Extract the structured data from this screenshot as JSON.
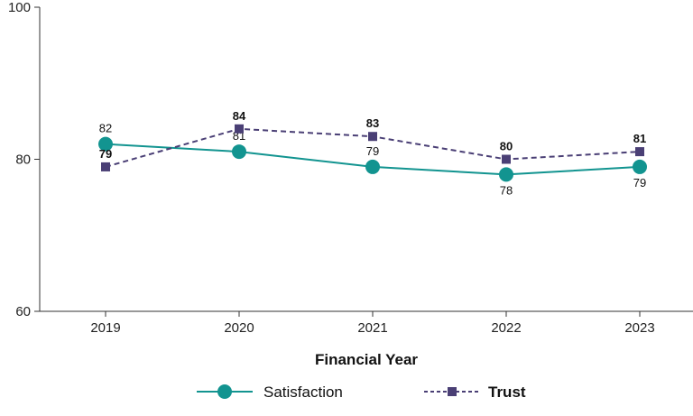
{
  "chart_data": {
    "type": "line",
    "title": "",
    "xlabel": "Financial Year",
    "ylabel": "",
    "categories": [
      "2019",
      "2020",
      "2021",
      "2022",
      "2023"
    ],
    "ylim": [
      60,
      100
    ],
    "yticks": [
      60,
      80,
      100
    ],
    "grid": false,
    "legend_position": "bottom",
    "series": [
      {
        "name": "Satisfaction",
        "values": [
          82,
          81,
          79,
          78,
          79
        ],
        "color": "#129490",
        "marker": "circle",
        "dash": false,
        "label_positions": [
          "above",
          "above",
          "above",
          "below",
          "below"
        ]
      },
      {
        "name": "Trust",
        "values": [
          79,
          84,
          83,
          80,
          81
        ],
        "color": "#4a3f75",
        "marker": "square",
        "dash": true,
        "label_positions": [
          "above",
          "above",
          "above",
          "above",
          "above"
        ]
      }
    ]
  }
}
